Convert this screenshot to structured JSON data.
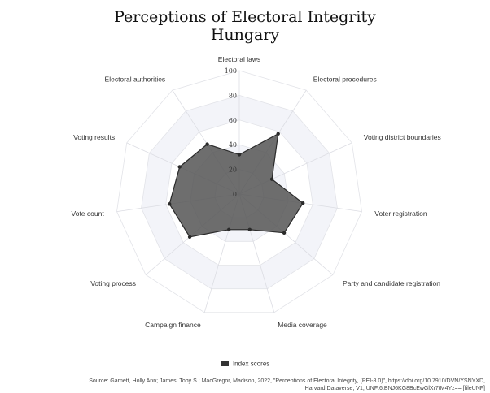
{
  "title": {
    "line1": "Perceptions of Electoral Integrity",
    "line2": "Hungary"
  },
  "chart_data": {
    "type": "radar",
    "categories": [
      "Electoral laws",
      "Electoral procedures",
      "Voting district boundaries",
      "Voter registration",
      "Party and candidate registration",
      "Media coverage",
      "Campaign finance",
      "Voting process",
      "Vote count",
      "Voting results",
      "Electoral authorities"
    ],
    "series": [
      {
        "name": "Index scores",
        "values": [
          32,
          58,
          29,
          52,
          48,
          30,
          30,
          53,
          57,
          53,
          48
        ],
        "color": "#555555"
      }
    ],
    "r_ticks": [
      0,
      20,
      40,
      60,
      80,
      100
    ],
    "r_range": [
      0,
      100
    ],
    "grid": "polygon",
    "legend": "bottom"
  },
  "legend": {
    "label": "Index scores"
  },
  "source": {
    "line1": "Source: Garnett, Holly Ann; James, Toby S.; MacGregor, Madison, 2022, \"Perceptions of Electoral Integrity, (PEI-8.0)\", https://doi.org/10.7910/DVN/YSNYXD,",
    "line2": "Harvard Dataverse, V1, UNF:6:BNJ6KG8BcEwGlXr7tM4Yz== [fileUNF]"
  }
}
